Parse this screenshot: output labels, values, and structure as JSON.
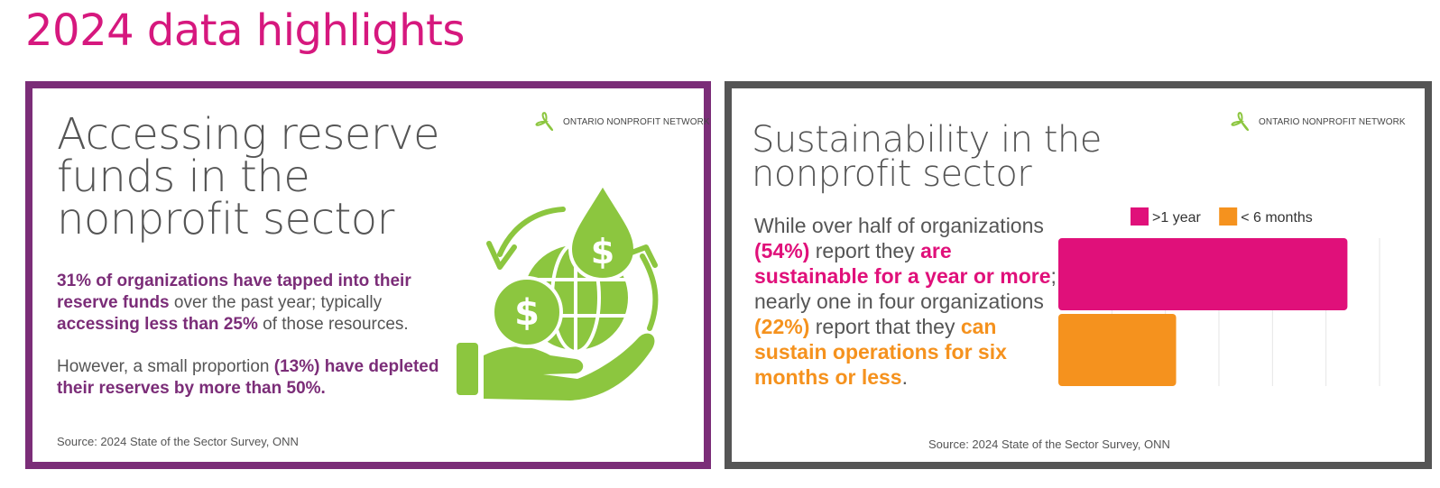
{
  "page_title": "2024 data highlights",
  "left_card": {
    "logo_text": "ONTARIO NONPROFIT NETWORK",
    "heading": "Accessing reserve funds in the nonprofit sector",
    "paragraph1": {
      "bold1": "31% of organizations have tapped into their reserve funds",
      "text1": " over the past year; typically ",
      "bold2": "accessing less than 25%",
      "text2": " of those resources."
    },
    "paragraph2": {
      "text1": "However, a small proportion ",
      "bold1": "(13%) have depleted their reserves by more than 50%."
    },
    "source": "Source: 2024 State of the Sector Survey, ONN",
    "illustration": {
      "icon": "globe-money-hand-icon",
      "coin_symbol": "$",
      "drop_symbol": "$",
      "color": "#8cc63f"
    }
  },
  "right_card": {
    "logo_text": "ONTARIO NONPROFIT NETWORK",
    "heading": "Sustainability in the nonprofit sector",
    "paragraph": {
      "t1": "While over half of organizations ",
      "b1": "(54%)",
      "t2": " report they ",
      "b2": "are sustainable for a year or more",
      "t3": "; nearly one in four organizations ",
      "b3": "(22%)",
      "t4": " report that they ",
      "b4": "can sustain operations for six months or less",
      "t5": "."
    },
    "source": "Source: 2024 State of the Sector Survey, ONN"
  },
  "chart_data": {
    "type": "bar",
    "orientation": "horizontal",
    "categories": [
      ">1 year",
      "< 6 months"
    ],
    "values": [
      54,
      22
    ],
    "colors": [
      "#e0107a",
      "#f5921e"
    ],
    "legend": [
      ">1 year",
      "< 6 months"
    ],
    "legend_position": "top",
    "xlim": [
      0,
      60
    ],
    "grid": true,
    "title": "",
    "xlabel": "",
    "ylabel": ""
  },
  "colors": {
    "title_pink": "#d6187e",
    "left_border": "#7b2d78",
    "right_border": "#555555",
    "logo_green": "#8cc63f"
  }
}
